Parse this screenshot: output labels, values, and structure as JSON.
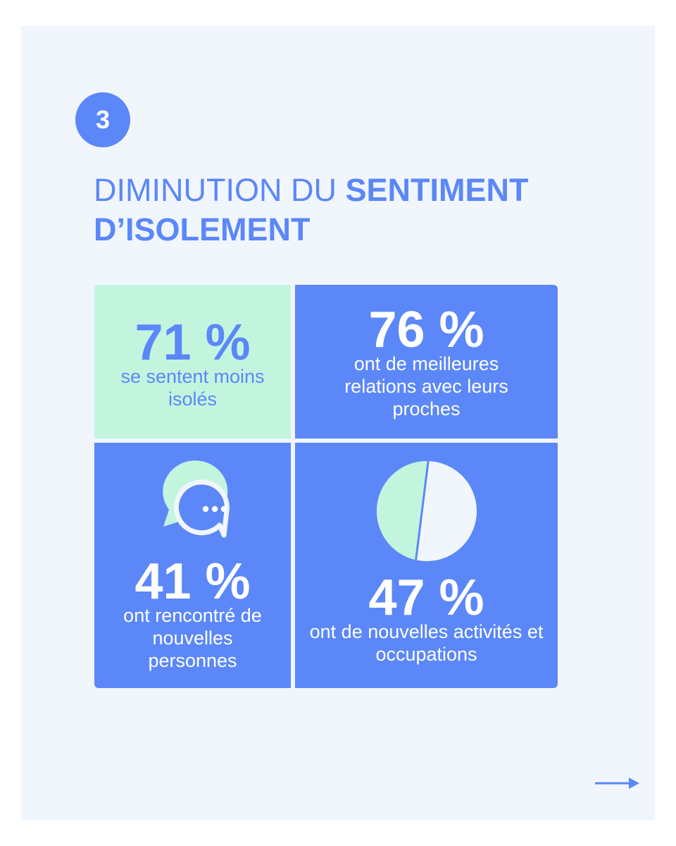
{
  "step": {
    "number": "3"
  },
  "headline": {
    "light": "DIMINUTION DU",
    "bold": "SENTIMENT D’ISOLEMENT"
  },
  "stats": [
    {
      "value": "71 %",
      "text": "se sentent moins isolés"
    },
    {
      "value": "76 %",
      "text": "ont de meilleures relations avec leurs proches"
    },
    {
      "value": "41 %",
      "text": "ont rencontré de nouvelles personnes"
    },
    {
      "value": "47 %",
      "text": "ont de nouvelles activités et occupations"
    }
  ],
  "icons": {
    "chat": "chat-bubbles-icon",
    "pie": "pie-chart-icon",
    "next": "arrow-right-icon"
  },
  "colors": {
    "background": "#f1f6fd",
    "primary": "#5b87f8",
    "mint": "#c3f5de",
    "white": "#ffffff"
  }
}
